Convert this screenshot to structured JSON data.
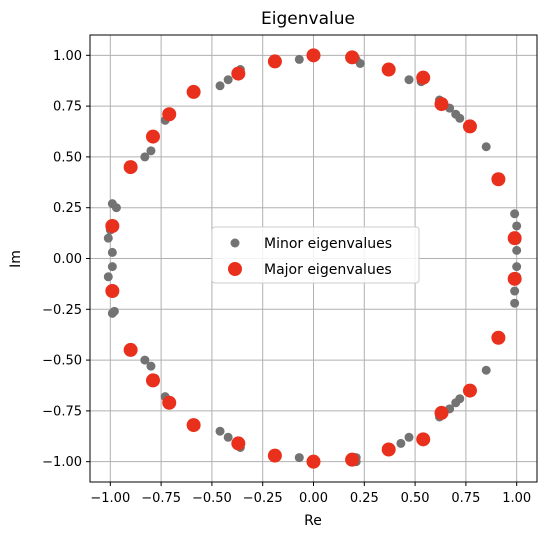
{
  "chart_data": {
    "type": "scatter",
    "title": "Eigenvalue",
    "xlabel": "Re",
    "ylabel": "Im",
    "xlim": [
      -1.1,
      1.1
    ],
    "ylim": [
      -1.1,
      1.1
    ],
    "xticks": [
      -1.0,
      -0.75,
      -0.5,
      -0.25,
      0.0,
      0.25,
      0.5,
      0.75,
      1.0
    ],
    "yticks": [
      -1.0,
      -0.75,
      -0.5,
      -0.25,
      0.0,
      0.25,
      0.5,
      0.75,
      1.0
    ],
    "xtick_labels": [
      "−1.00",
      "−0.75",
      "−0.50",
      "−0.25",
      "0.00",
      "0.25",
      "0.50",
      "0.75",
      "1.00"
    ],
    "ytick_labels": [
      "−1.00",
      "−0.75",
      "−0.50",
      "−0.25",
      "0.00",
      "0.25",
      "0.50",
      "0.75",
      "1.00"
    ],
    "grid": true,
    "legend_position": "center",
    "series": [
      {
        "name": "Minor eigenvalues",
        "color": "#737373",
        "points": [
          [
            0.21,
            0.98
          ],
          [
            0.23,
            0.96
          ],
          [
            -0.07,
            0.98
          ],
          [
            -0.36,
            0.93
          ],
          [
            -0.42,
            0.88
          ],
          [
            -0.46,
            0.85
          ],
          [
            0.47,
            0.88
          ],
          [
            0.53,
            0.87
          ],
          [
            0.62,
            0.78
          ],
          [
            0.67,
            0.74
          ],
          [
            0.7,
            0.71
          ],
          [
            0.72,
            0.69
          ],
          [
            0.85,
            0.55
          ],
          [
            -0.73,
            0.68
          ],
          [
            -0.78,
            0.6
          ],
          [
            -0.8,
            0.53
          ],
          [
            -0.83,
            0.5
          ],
          [
            -0.99,
            0.27
          ],
          [
            -0.97,
            0.25
          ],
          [
            0.99,
            0.22
          ],
          [
            1.0,
            0.16
          ],
          [
            1.0,
            0.09
          ],
          [
            1.0,
            0.04
          ],
          [
            -1.0,
            0.14
          ],
          [
            -1.01,
            0.1
          ],
          [
            -0.99,
            0.03
          ],
          [
            -0.99,
            -0.04
          ],
          [
            -1.01,
            -0.09
          ],
          [
            1.0,
            -0.04
          ],
          [
            1.0,
            -0.09
          ],
          [
            0.99,
            -0.16
          ],
          [
            0.99,
            -0.22
          ],
          [
            -0.98,
            -0.26
          ],
          [
            -0.99,
            -0.27
          ],
          [
            -0.83,
            -0.5
          ],
          [
            -0.8,
            -0.53
          ],
          [
            -0.78,
            -0.59
          ],
          [
            -0.73,
            -0.68
          ],
          [
            0.85,
            -0.55
          ],
          [
            0.72,
            -0.69
          ],
          [
            0.7,
            -0.71
          ],
          [
            0.67,
            -0.74
          ],
          [
            0.62,
            -0.78
          ],
          [
            0.63,
            -0.76
          ],
          [
            -0.36,
            -0.93
          ],
          [
            -0.42,
            -0.88
          ],
          [
            -0.46,
            -0.85
          ],
          [
            0.47,
            -0.88
          ],
          [
            0.43,
            -0.91
          ],
          [
            0.21,
            -0.98
          ],
          [
            0.21,
            -1.0
          ],
          [
            -0.07,
            -0.98
          ]
        ]
      },
      {
        "name": "Major eigenvalues",
        "color": "#e8301c",
        "points": [
          [
            0.0,
            1.0
          ],
          [
            0.19,
            0.99
          ],
          [
            0.37,
            0.93
          ],
          [
            0.54,
            0.89
          ],
          [
            0.63,
            0.76
          ],
          [
            0.77,
            0.65
          ],
          [
            0.91,
            0.39
          ],
          [
            0.99,
            0.1
          ],
          [
            0.99,
            -0.1
          ],
          [
            0.91,
            -0.39
          ],
          [
            0.77,
            -0.65
          ],
          [
            0.63,
            -0.76
          ],
          [
            0.54,
            -0.89
          ],
          [
            0.37,
            -0.94
          ],
          [
            0.19,
            -0.99
          ],
          [
            0.0,
            -1.0
          ],
          [
            -0.19,
            -0.97
          ],
          [
            -0.37,
            -0.91
          ],
          [
            -0.59,
            -0.82
          ],
          [
            -0.71,
            -0.71
          ],
          [
            -0.79,
            -0.6
          ],
          [
            -0.9,
            -0.45
          ],
          [
            -0.99,
            -0.16
          ],
          [
            -0.99,
            0.16
          ],
          [
            -0.9,
            0.45
          ],
          [
            -0.79,
            0.6
          ],
          [
            -0.71,
            0.71
          ],
          [
            -0.59,
            0.82
          ],
          [
            -0.37,
            0.91
          ],
          [
            -0.19,
            0.97
          ]
        ]
      }
    ]
  }
}
